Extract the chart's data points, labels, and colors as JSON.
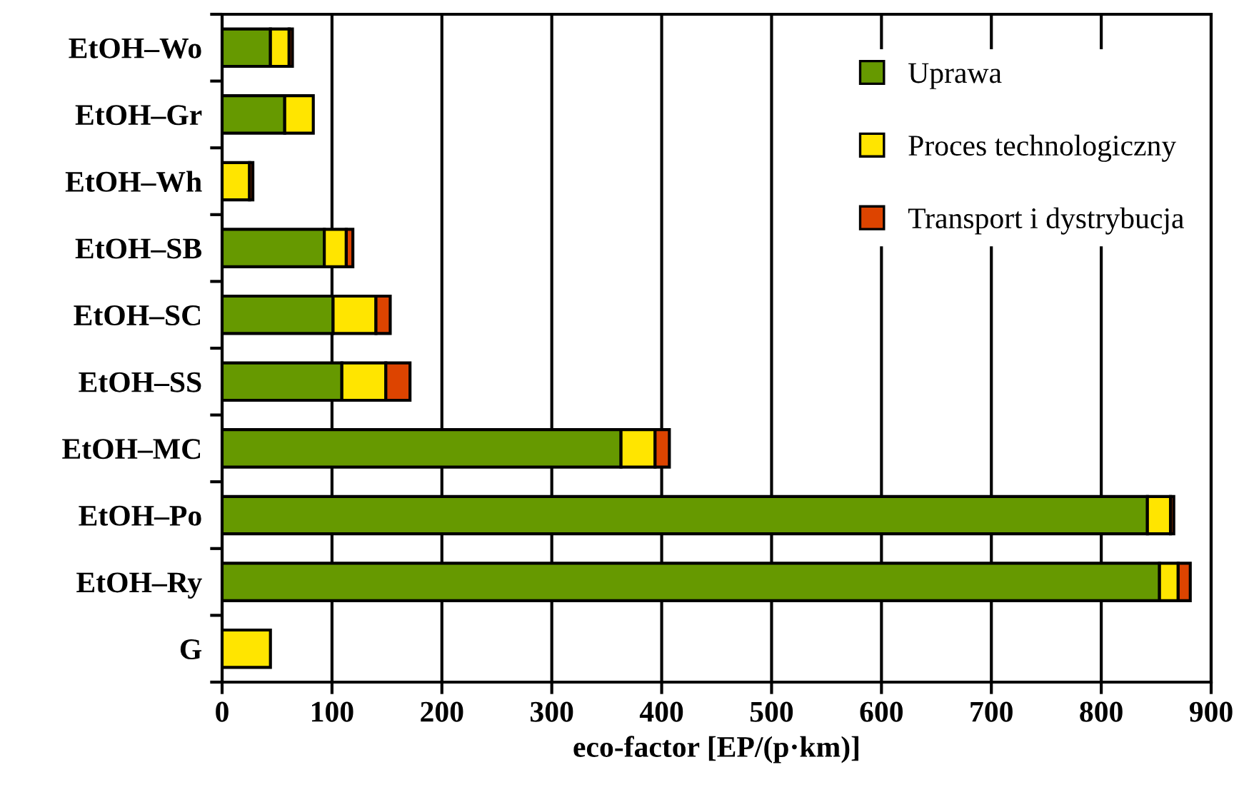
{
  "chart_data": {
    "type": "bar",
    "orientation": "horizontal",
    "stacked": true,
    "xlabel": "eco-factor [EP/(p·km)]",
    "categories": [
      "EtOH–Wo",
      "EtOH–Gr",
      "EtOH–Wh",
      "EtOH–SB",
      "EtOH–SC",
      "EtOH–SS",
      "EtOH–MC",
      "EtOH–Po",
      "EtOH–Ry",
      "G"
    ],
    "series": [
      {
        "name": "Uprawa",
        "color": "#669900",
        "values": [
          44,
          57,
          null,
          93,
          101,
          109,
          363,
          842,
          853,
          null
        ]
      },
      {
        "name": "Proces technologiczny",
        "color": "#ffe500",
        "values": [
          17,
          26,
          25,
          20,
          39,
          40,
          31,
          21,
          17,
          44
        ]
      },
      {
        "name": "Transport i dystrybucja",
        "color": "#dd4400",
        "values": [
          3,
          null,
          3,
          6,
          13,
          22,
          13,
          3,
          11,
          null
        ]
      }
    ],
    "xlim": [
      0,
      900
    ],
    "xticks": [
      0,
      100,
      200,
      300,
      400,
      500,
      600,
      700,
      800,
      900
    ],
    "grid": "x",
    "legend": "top right"
  }
}
